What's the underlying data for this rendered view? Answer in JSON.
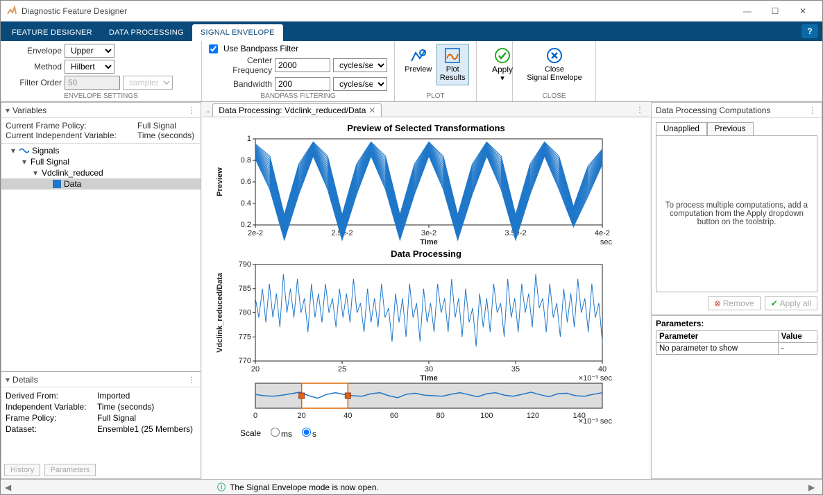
{
  "window": {
    "title": "Diagnostic Feature Designer"
  },
  "tabs": {
    "items": [
      "FEATURE DESIGNER",
      "DATA PROCESSING",
      "SIGNAL ENVELOPE"
    ],
    "active": 2
  },
  "toolstrip": {
    "envelope_settings": {
      "envelope_label": "Envelope",
      "envelope_value": "Upper",
      "method_label": "Method",
      "method_value": "Hilbert",
      "filter_order_label": "Filter Order",
      "filter_order_value": "50",
      "filter_order_unit": "samples",
      "caption": "ENVELOPE SETTINGS"
    },
    "bandpass": {
      "checkbox_label": "Use Bandpass Filter",
      "checked": true,
      "center_label": "Center Frequency",
      "center_value": "2000",
      "center_unit": "cycles/se…",
      "bandwidth_label": "Bandwidth",
      "bandwidth_value": "200",
      "bandwidth_unit": "cycles/se…",
      "caption": "BANDPASS FILTERING"
    },
    "plot": {
      "preview": "Preview",
      "plot_results": "Plot\nResults",
      "caption": "PLOT"
    },
    "apply": {
      "label": "Apply"
    },
    "close": {
      "label": "Close\nSignal Envelope",
      "caption": "CLOSE"
    }
  },
  "variables": {
    "title": "Variables",
    "frame_policy_label": "Current Frame Policy:",
    "frame_policy_value": "Full Signal",
    "indep_var_label": "Current Independent Variable:",
    "indep_var_value": "Time (seconds)",
    "tree": {
      "root": "Signals",
      "l2": "Full Signal",
      "l3": "Vdclink_reduced",
      "l4": "Data"
    }
  },
  "details": {
    "title": "Details",
    "rows": [
      {
        "k": "Derived From:",
        "v": "Imported"
      },
      {
        "k": "Independent Variable:",
        "v": "Time (seconds)"
      },
      {
        "k": "Frame Policy:",
        "v": "Full Signal"
      },
      {
        "k": "Dataset:",
        "v": "Ensemble1 (25 Members)"
      }
    ],
    "tabs": [
      "History",
      "Parameters"
    ]
  },
  "doc_tab": {
    "title": "Data Processing: Vdclink_reduced/Data"
  },
  "preview_chart": {
    "title": "Preview of Selected Transformations",
    "ylabel": "Preview",
    "xlabel": "Time",
    "xunit": "sec",
    "xlim": [
      0.02,
      0.04
    ],
    "ylim": [
      0.2,
      1.05
    ],
    "xticks": [
      0.02,
      0.025,
      0.03,
      0.035,
      0.04
    ],
    "xticklabels": [
      "2e-2",
      "2.5e-2",
      "3e-2",
      "3.5e-2",
      "4e-2"
    ],
    "yticks": [
      0.2,
      0.4,
      0.6,
      0.8,
      1.0
    ],
    "yticklabels": [
      "0.2",
      "0.4",
      "0.6",
      "0.8",
      "1"
    ],
    "color": "#1f77c9",
    "bg": "#ffffff",
    "series_low": [
      0.85,
      0.55,
      0.05,
      0.5,
      0.88,
      0.55,
      0.05,
      0.5,
      0.88,
      0.55,
      0.05,
      0.5,
      0.88,
      0.55,
      0.05,
      0.5,
      0.88,
      0.55,
      0.05,
      0.5,
      0.88,
      0.55,
      0.18,
      0.48,
      0.8
    ],
    "series_high": [
      1.0,
      0.88,
      0.3,
      0.8,
      1.02,
      0.88,
      0.3,
      0.8,
      1.02,
      0.88,
      0.3,
      0.8,
      1.02,
      0.88,
      0.3,
      0.8,
      1.02,
      0.88,
      0.3,
      0.8,
      1.02,
      0.88,
      0.38,
      0.78,
      0.95
    ]
  },
  "data_chart": {
    "title": "Data Processing",
    "ylabel": "Vdclink_reduced/Data",
    "xlabel": "Time",
    "xunit": "×10⁻³  sec",
    "xlim": [
      20,
      40
    ],
    "ylim": [
      770,
      790
    ],
    "xticks": [
      20,
      25,
      30,
      35,
      40
    ],
    "xticklabels": [
      "20",
      "25",
      "30",
      "35",
      "40"
    ],
    "yticks": [
      770,
      775,
      780,
      785,
      790
    ],
    "yticklabels": [
      "770",
      "775",
      "780",
      "785",
      "790"
    ],
    "color": "#1f77c9",
    "bg": "#ffffff",
    "values": [
      783,
      779,
      785,
      778,
      786,
      779,
      784,
      777,
      788,
      780,
      785,
      779,
      787,
      780,
      783,
      776,
      786,
      779,
      784,
      778,
      786,
      780,
      783,
      777,
      785,
      779,
      784,
      778,
      787,
      780,
      782,
      776,
      785,
      778,
      783,
      777,
      786,
      779,
      781,
      774,
      784,
      778,
      783,
      775,
      786,
      779,
      782,
      774,
      785,
      778,
      782,
      776,
      786,
      780,
      783,
      776,
      787,
      779,
      783,
      775,
      785,
      778,
      781,
      773,
      784,
      777,
      783,
      776,
      786,
      780,
      782,
      775,
      787,
      779,
      783,
      776,
      786,
      780,
      784,
      777,
      788,
      781,
      783,
      776,
      786,
      779,
      782,
      775,
      785,
      778,
      784,
      777,
      787,
      780,
      783,
      776,
      786,
      779,
      782,
      774
    ]
  },
  "overview": {
    "xlim": [
      0,
      150
    ],
    "xunit": "×10⁻³  sec",
    "xticks": [
      0,
      20,
      40,
      60,
      80,
      100,
      120,
      140
    ],
    "selection": [
      20,
      40
    ],
    "color": "#1f77c9",
    "values": [
      0.55,
      0.5,
      0.48,
      0.52,
      0.58,
      0.64,
      0.5,
      0.4,
      0.55,
      0.62,
      0.55,
      0.5,
      0.48,
      0.58,
      0.62,
      0.5,
      0.42,
      0.56,
      0.6,
      0.52,
      0.5,
      0.48,
      0.56,
      0.62,
      0.54,
      0.46,
      0.58,
      0.62,
      0.52,
      0.48,
      0.56,
      0.64,
      0.54,
      0.46,
      0.58,
      0.6,
      0.5,
      0.48,
      0.56,
      0.62
    ]
  },
  "scale": {
    "label": "Scale",
    "ms": "ms",
    "s": "s",
    "selected": "s"
  },
  "computations": {
    "title": "Data Processing Computations",
    "tabs": [
      "Unapplied",
      "Previous"
    ],
    "active": 0,
    "placeholder": "To process multiple computations, add a computation from the Apply dropdown button on the toolstrip.",
    "remove": "Remove",
    "apply_all": "Apply all"
  },
  "parameters_panel": {
    "title": "Parameters:",
    "columns": [
      "Parameter",
      "Value"
    ],
    "empty_row": [
      "No parameter to show",
      "-"
    ]
  },
  "status": {
    "text": "The Signal Envelope mode is now open."
  }
}
